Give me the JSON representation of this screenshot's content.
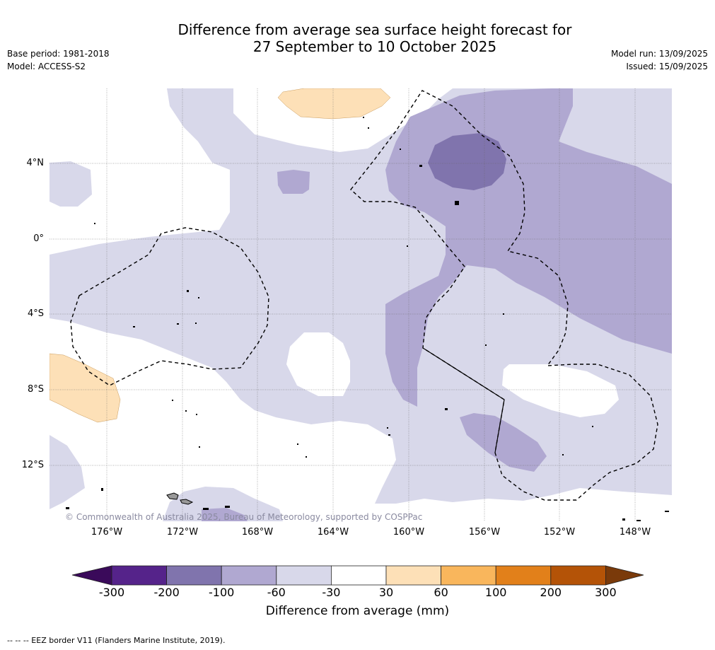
{
  "title_line1": "Difference from average sea surface height forecast for",
  "title_line2": "27 September to 10 October 2025",
  "base_period": "Base period: 1981-2018",
  "model": "Model: ACCESS-S2",
  "model_run": "Model run: 13/09/2025",
  "issued": "Issued: 15/09/2025",
  "copyright": "© Commonwealth of Australia 2025, Bureau of Meteorology, supported by COSPPac",
  "lat_labels": [
    "4°N",
    "0°",
    "4°S",
    "8°S",
    "12°S"
  ],
  "lon_labels": [
    "176°W",
    "172°W",
    "168°W",
    "164°W",
    "160°W",
    "156°W",
    "152°W",
    "148°W"
  ],
  "colorbar": {
    "label": "Difference from average (mm)",
    "ticks": [
      "-300",
      "-200",
      "-100",
      "-60",
      "-30",
      "30",
      "60",
      "100",
      "200",
      "300"
    ],
    "colors": [
      "#3a0a5a",
      "#55238a",
      "#8074ad",
      "#b0a8d1",
      "#d8d8ea",
      "#ffffff",
      "#fde0b7",
      "#f9b65c",
      "#e2801a",
      "#b45307",
      "#7a3a0a"
    ]
  },
  "footnote": "--  --  -- EEZ border V11 (Flanders Marine Institute, 2019)."
}
